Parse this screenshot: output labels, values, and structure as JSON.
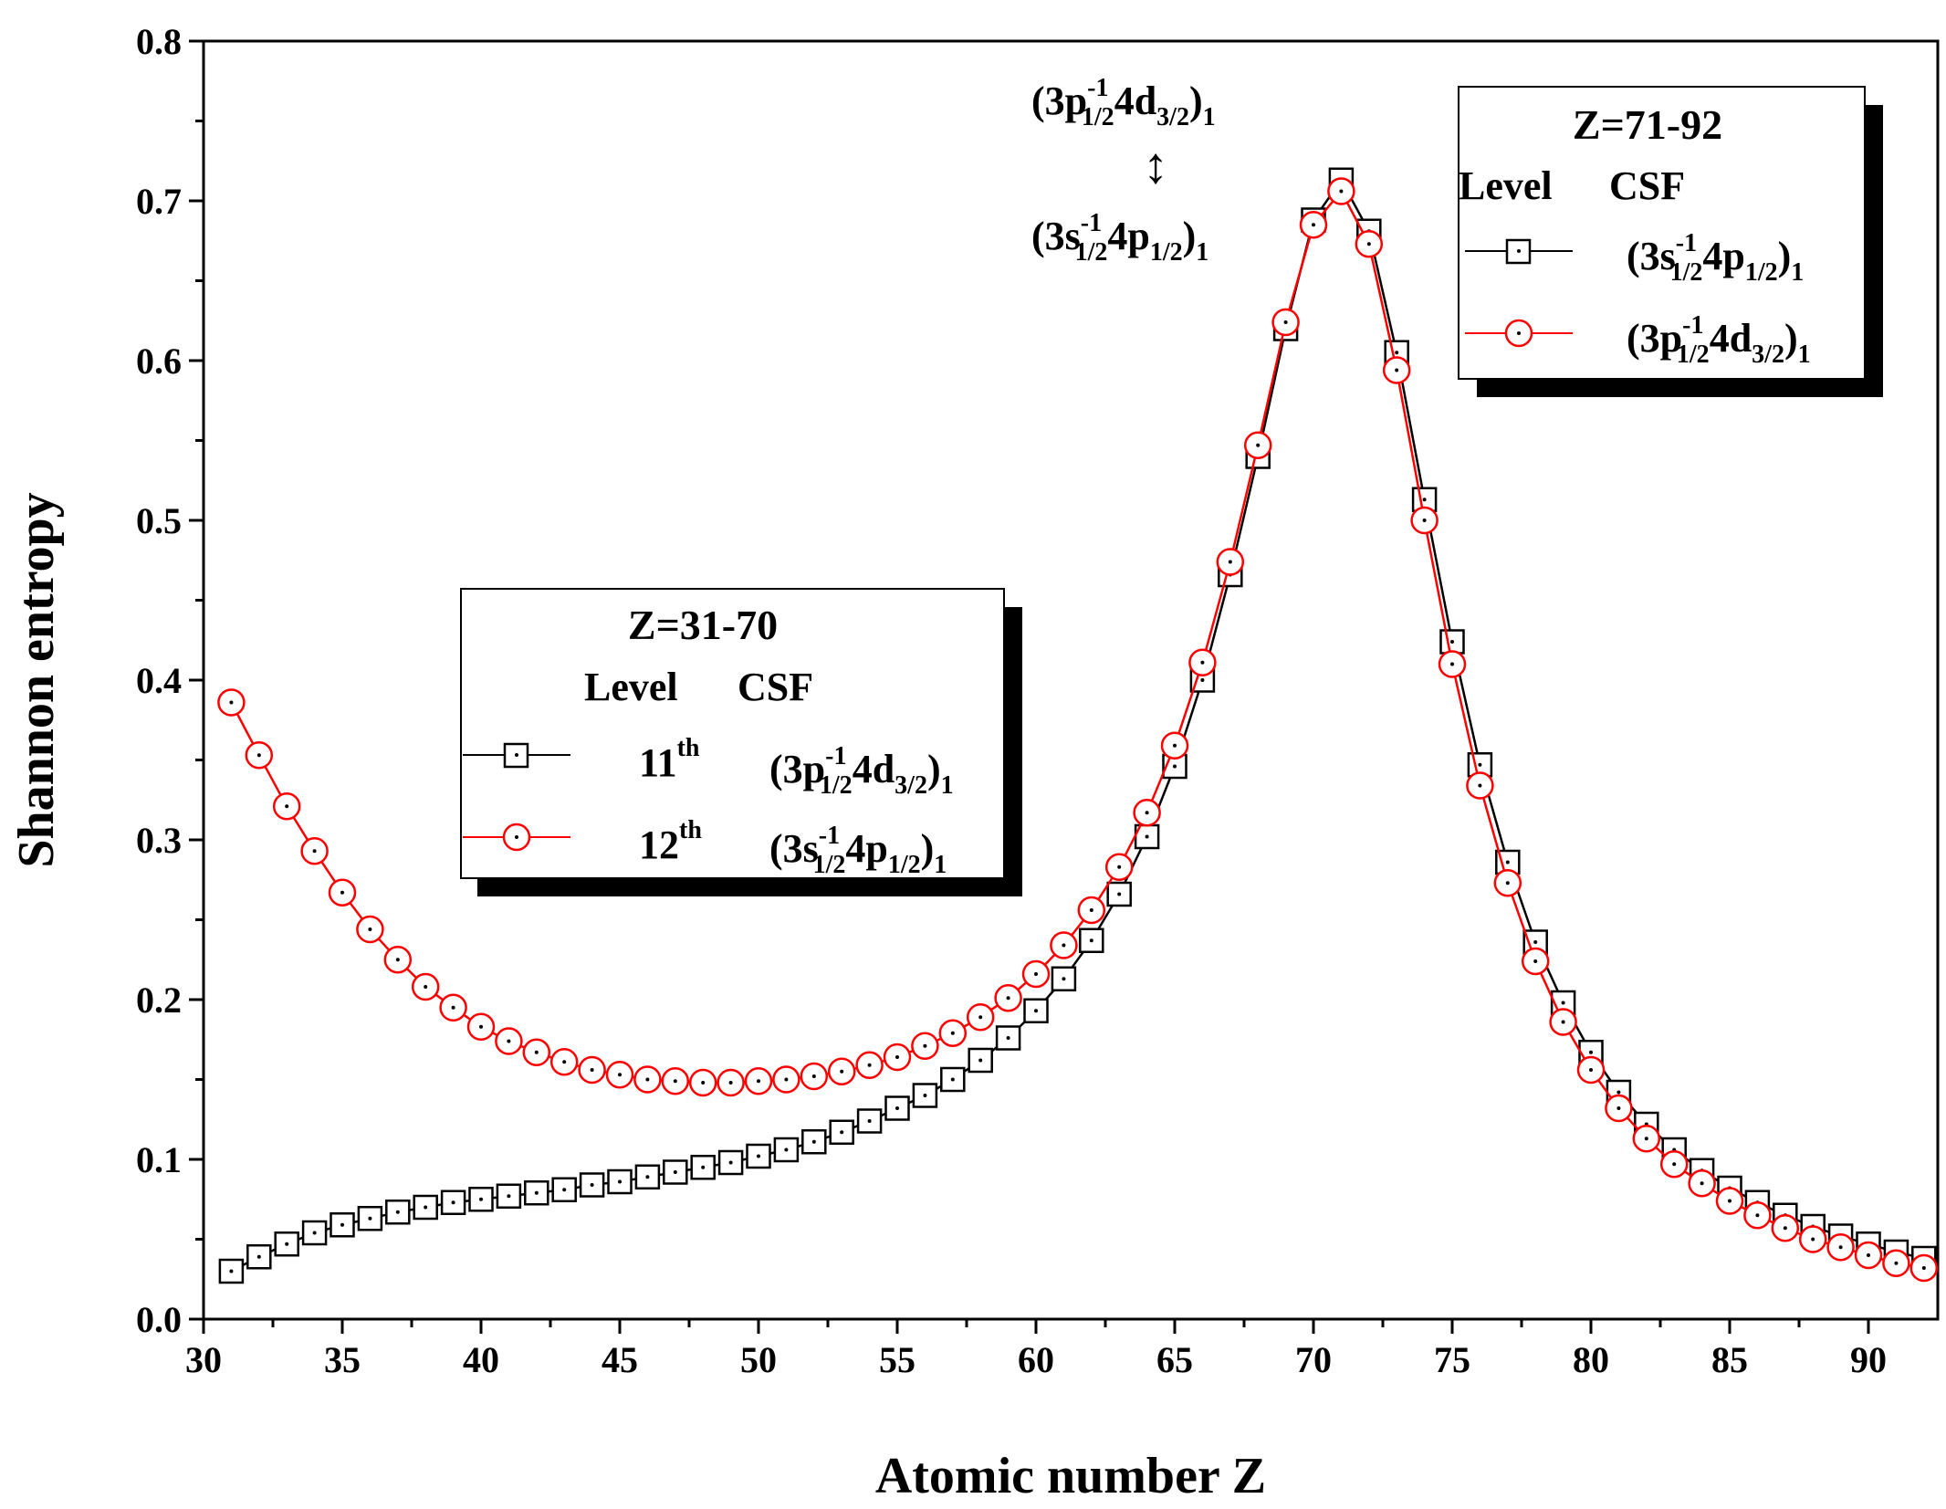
{
  "chart_data": {
    "type": "line",
    "title": "",
    "xlabel": "Atomic number Z",
    "ylabel": "Shannon entropy",
    "xlim": [
      30,
      92.5
    ],
    "ylim": [
      0.0,
      0.8
    ],
    "xticks": [
      30,
      35,
      40,
      45,
      50,
      55,
      60,
      65,
      70,
      75,
      80,
      85,
      90
    ],
    "xtick_labels": [
      "30",
      "35",
      "40",
      "45",
      "50",
      "55",
      "60",
      "65",
      "70",
      "75",
      "80",
      "85",
      "90"
    ],
    "yticks": [
      0.0,
      0.1,
      0.2,
      0.3,
      0.4,
      0.5,
      0.6,
      0.7,
      0.8
    ],
    "ytick_labels": [
      "0.0",
      "0.1",
      "0.2",
      "0.3",
      "0.4",
      "0.5",
      "0.6",
      "0.7",
      "0.8"
    ],
    "grid": false,
    "x": [
      31,
      32,
      33,
      34,
      35,
      36,
      37,
      38,
      39,
      40,
      41,
      42,
      43,
      44,
      45,
      46,
      47,
      48,
      49,
      50,
      51,
      52,
      53,
      54,
      55,
      56,
      57,
      58,
      59,
      60,
      61,
      62,
      63,
      64,
      65,
      66,
      67,
      68,
      69,
      70,
      71,
      72,
      73,
      74,
      75,
      76,
      77,
      78,
      79,
      80,
      81,
      82,
      83,
      84,
      85,
      86,
      87,
      88,
      89,
      90,
      91,
      92
    ],
    "series": [
      {
        "name": "11th level",
        "marker": "square",
        "color": "#000000",
        "values": [
          0.03,
          0.039,
          0.047,
          0.054,
          0.059,
          0.063,
          0.067,
          0.07,
          0.073,
          0.075,
          0.077,
          0.079,
          0.081,
          0.084,
          0.086,
          0.089,
          0.092,
          0.095,
          0.098,
          0.102,
          0.106,
          0.111,
          0.117,
          0.124,
          0.132,
          0.14,
          0.15,
          0.162,
          0.176,
          0.193,
          0.213,
          0.237,
          0.266,
          0.302,
          0.346,
          0.4,
          0.466,
          0.54,
          0.62,
          0.688,
          0.713,
          0.681,
          0.605,
          0.513,
          0.424,
          0.347,
          0.286,
          0.236,
          0.198,
          0.167,
          0.142,
          0.122,
          0.106,
          0.093,
          0.082,
          0.073,
          0.065,
          0.058,
          0.052,
          0.047,
          0.042,
          0.038
        ]
      },
      {
        "name": "12th level",
        "marker": "circle",
        "color": "#ff0000",
        "values": [
          0.386,
          0.353,
          0.321,
          0.293,
          0.267,
          0.244,
          0.225,
          0.208,
          0.195,
          0.183,
          0.174,
          0.167,
          0.161,
          0.156,
          0.153,
          0.15,
          0.149,
          0.148,
          0.148,
          0.149,
          0.15,
          0.152,
          0.155,
          0.159,
          0.164,
          0.171,
          0.179,
          0.189,
          0.201,
          0.216,
          0.234,
          0.256,
          0.283,
          0.317,
          0.359,
          0.411,
          0.474,
          0.547,
          0.624,
          0.685,
          0.706,
          0.673,
          0.594,
          0.5,
          0.41,
          0.334,
          0.273,
          0.224,
          0.186,
          0.156,
          0.132,
          0.113,
          0.097,
          0.085,
          0.074,
          0.065,
          0.057,
          0.05,
          0.045,
          0.04,
          0.035,
          0.032
        ]
      }
    ],
    "annotations": {
      "top": {
        "base": "(3p",
        "sup": "-1",
        "sub1": "1/2",
        "mid": "4d",
        "sub2": "3/2",
        "close": ")",
        "sub3": "1"
      },
      "arrow": "↕",
      "bottom": {
        "base": "(3s",
        "sup": "-1",
        "sub1": "1/2",
        "mid": "4p",
        "sub2": "1/2",
        "close": ")",
        "sub3": "1"
      }
    },
    "legends": [
      {
        "placement": "center-left",
        "title": "Z=31-70",
        "header_level": "Level",
        "header_csf": "CSF",
        "entries": [
          {
            "marker": "square",
            "level": "11",
            "level_sup": "th",
            "csf": {
              "base": "(3p",
              "sup": "-1",
              "sub1": "1/2",
              "mid": "4d",
              "sub2": "3/2",
              "close": ")",
              "sub3": "1"
            }
          },
          {
            "marker": "circle",
            "level": "12",
            "level_sup": "th",
            "csf": {
              "base": "(3s",
              "sup": "-1",
              "sub1": "1/2",
              "mid": "4p",
              "sub2": "1/2",
              "close": ")",
              "sub3": "1"
            }
          }
        ]
      },
      {
        "placement": "top-right",
        "title": "Z=71-92",
        "header_level": "Level",
        "header_csf": "CSF",
        "entries": [
          {
            "marker": "square",
            "csf": {
              "base": "(3s",
              "sup": "-1",
              "sub1": "1/2",
              "mid": "4p",
              "sub2": "1/2",
              "close": ")",
              "sub3": "1"
            }
          },
          {
            "marker": "circle",
            "csf": {
              "base": "(3p",
              "sup": "-1",
              "sub1": "1/2",
              "mid": "4d",
              "sub2": "3/2",
              "close": ")",
              "sub3": "1"
            }
          }
        ]
      }
    ]
  }
}
